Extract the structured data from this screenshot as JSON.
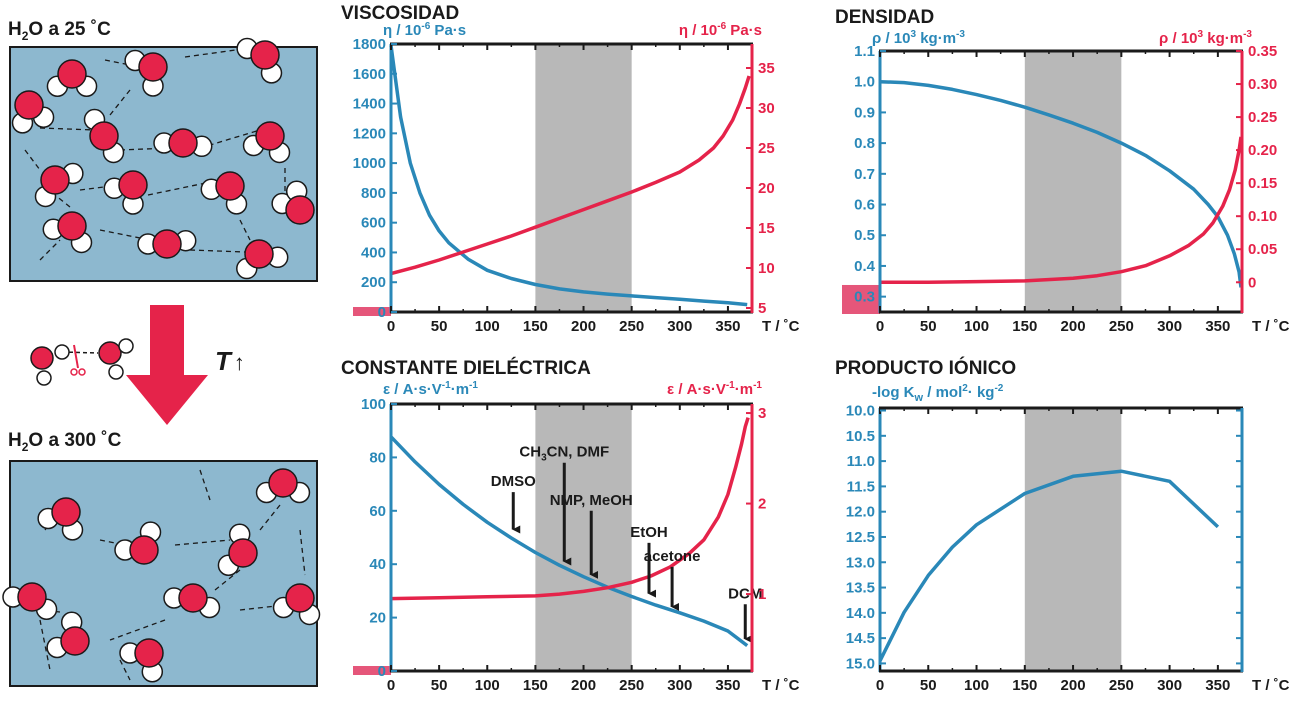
{
  "colors": {
    "blue": "#2a88b8",
    "red": "#e5234a",
    "gray": "#b8b8b8",
    "water": "#8db8cf",
    "black": "#1a1a1a"
  },
  "left": {
    "top_label": {
      "prefix": "H",
      "sub": "2",
      "suffix": "O a 25 ˚C"
    },
    "bottom_label": {
      "prefix": "H",
      "sub": "2",
      "suffix": "O a 300 ˚C"
    },
    "temp_label": {
      "letter": "T",
      "arrow": "↑"
    }
  },
  "chart_data": [
    {
      "id": "viscosity",
      "type": "line",
      "title": "VISCOSIDAD",
      "left_axis_label": {
        "text": "η / 10",
        "sup": "-6",
        "unit": " Pa·s"
      },
      "right_axis_label": {
        "text": "η / 10",
        "sup": "-6",
        "unit": " Pa·s"
      },
      "xlabel": "T / ˚C",
      "xlim": [
        0,
        375
      ],
      "ylim_left": [
        0,
        1800
      ],
      "ylim_right": [
        4.5,
        38
      ],
      "x_ticks": [
        0,
        50,
        100,
        150,
        200,
        250,
        300,
        350
      ],
      "yleft_ticks": [
        0,
        200,
        400,
        600,
        800,
        1000,
        1200,
        1400,
        1600,
        1800
      ],
      "yright_ticks": [
        5,
        10,
        15,
        20,
        25,
        30,
        35
      ],
      "shaded_region": [
        150,
        250
      ],
      "series": [
        {
          "axis": "left",
          "color": "blue",
          "x": [
            0,
            10,
            20,
            30,
            40,
            50,
            60,
            80,
            100,
            125,
            150,
            175,
            200,
            225,
            250,
            275,
            300,
            325,
            350,
            370
          ],
          "values": [
            1790,
            1310,
            1000,
            800,
            650,
            545,
            465,
            355,
            280,
            225,
            185,
            155,
            135,
            120,
            108,
            97,
            85,
            73,
            62,
            50
          ]
        },
        {
          "axis": "right",
          "color": "red",
          "x": [
            0,
            25,
            50,
            75,
            100,
            125,
            150,
            175,
            200,
            225,
            250,
            275,
            300,
            320,
            335,
            345,
            355,
            362,
            368,
            372
          ],
          "values": [
            9.3,
            10.1,
            11.0,
            12.0,
            13.0,
            14.0,
            15.1,
            16.2,
            17.3,
            18.4,
            19.5,
            20.7,
            22.0,
            23.5,
            25.0,
            26.5,
            28.5,
            30.5,
            32.5,
            34.0
          ]
        }
      ]
    },
    {
      "id": "density",
      "type": "line",
      "title": "DENSIDAD",
      "left_axis_label": {
        "text": "ρ / 10",
        "sup": "3",
        "unit": " kg·m",
        "sup2": "-3"
      },
      "right_axis_label": {
        "text": "ρ / 10",
        "sup": "3",
        "unit": " kg·m",
        "sup2": "-3"
      },
      "xlabel": "T / ˚C",
      "xlim": [
        0,
        375
      ],
      "ylim_left": [
        0.25,
        1.1
      ],
      "ylim_right": [
        -0.045,
        0.35
      ],
      "x_ticks": [
        0,
        50,
        100,
        150,
        200,
        250,
        300,
        350
      ],
      "yleft_ticks": [
        0.3,
        0.4,
        0.5,
        0.6,
        0.7,
        0.8,
        0.9,
        1.0,
        1.1
      ],
      "yright_ticks": [
        0,
        0.05,
        0.1,
        0.15,
        0.2,
        0.25,
        0.3,
        0.35
      ],
      "yleft_tick_labels": [
        "0.3",
        "0.4",
        "0.5",
        "0.6",
        "0.7",
        "0.8",
        "0.9",
        "1.0",
        "1.1"
      ],
      "yright_tick_labels": [
        "0",
        "0.05",
        "0.10",
        "0.15",
        "0.20",
        "0.25",
        "0.30",
        "0.35"
      ],
      "shaded_region": [
        150,
        250
      ],
      "series": [
        {
          "axis": "left",
          "color": "blue",
          "x": [
            0,
            25,
            50,
            75,
            100,
            125,
            150,
            175,
            200,
            225,
            250,
            275,
            300,
            325,
            340,
            350,
            360,
            367,
            372,
            374
          ],
          "values": [
            1.0,
            0.997,
            0.988,
            0.975,
            0.958,
            0.939,
            0.917,
            0.892,
            0.865,
            0.835,
            0.8,
            0.76,
            0.71,
            0.65,
            0.6,
            0.56,
            0.5,
            0.44,
            0.38,
            0.33
          ]
        },
        {
          "axis": "right",
          "color": "red",
          "x": [
            0,
            50,
            100,
            150,
            200,
            225,
            250,
            275,
            300,
            320,
            335,
            345,
            355,
            362,
            368,
            372,
            374
          ],
          "values": [
            0,
            0,
            0.001,
            0.002,
            0.006,
            0.01,
            0.016,
            0.025,
            0.04,
            0.056,
            0.073,
            0.09,
            0.115,
            0.14,
            0.17,
            0.2,
            0.22
          ]
        }
      ]
    },
    {
      "id": "dielectric",
      "type": "line",
      "title": "CONSTANTE DIELÉCTRICA",
      "left_axis_label": {
        "text": "ε / A·s·V",
        "sup": "-1",
        "unit": "·m",
        "sup2": "-1"
      },
      "right_axis_label": {
        "text": "ε / A·s·V",
        "sup": "-1",
        "unit": "·m",
        "sup2": "-1"
      },
      "xlabel": "T / ˚C",
      "xlim": [
        0,
        375
      ],
      "ylim_left": [
        0,
        100
      ],
      "ylim_right": [
        0.15,
        3.1
      ],
      "x_ticks": [
        0,
        50,
        100,
        150,
        200,
        250,
        300,
        350
      ],
      "yleft_ticks": [
        0,
        20,
        40,
        60,
        80,
        100
      ],
      "yright_ticks": [
        1,
        2,
        3
      ],
      "shaded_region": [
        150,
        250
      ],
      "series": [
        {
          "axis": "left",
          "color": "blue",
          "x": [
            0,
            25,
            50,
            75,
            100,
            125,
            150,
            175,
            200,
            225,
            250,
            275,
            300,
            325,
            350,
            370
          ],
          "values": [
            87.7,
            78.3,
            69.9,
            62.4,
            55.7,
            49.8,
            44.4,
            39.6,
            35.3,
            31.4,
            27.9,
            24.7,
            21.8,
            18.7,
            15.0,
            9.5
          ]
        },
        {
          "axis": "right",
          "color": "red",
          "x": [
            0,
            50,
            100,
            150,
            175,
            200,
            225,
            250,
            270,
            290,
            310,
            325,
            340,
            350,
            358,
            364,
            368,
            371
          ],
          "values": [
            0.95,
            0.96,
            0.97,
            0.98,
            1.0,
            1.03,
            1.07,
            1.13,
            1.2,
            1.3,
            1.45,
            1.6,
            1.85,
            2.1,
            2.4,
            2.65,
            2.85,
            2.95
          ]
        }
      ],
      "annotations": [
        {
          "label": "DMSO",
          "x": 127,
          "arrow_from": 67,
          "arrow_to": 50
        },
        {
          "label": "CH3CN, DMF",
          "sub": "3",
          "pre": "CH",
          "post": "CN, DMF",
          "x": 180,
          "arrow_from": 78,
          "arrow_to": 38
        },
        {
          "label": "NMP, MeOH",
          "x": 208,
          "arrow_from": 60,
          "arrow_to": 33
        },
        {
          "label": "EtOH",
          "x": 268,
          "arrow_from": 48,
          "arrow_to": 26
        },
        {
          "label": "acetone",
          "x": 292,
          "arrow_from": 39,
          "arrow_to": 21
        },
        {
          "label": "DCM",
          "x": 368,
          "arrow_from": 25,
          "arrow_to": 9
        }
      ]
    },
    {
      "id": "ionic",
      "type": "line",
      "title": "PRODUCTO IÓNICO",
      "left_axis_label": {
        "text": "-log K",
        "sub": "w",
        "unit": " / mol",
        "sup": "2",
        "unit2": "· kg",
        "sup2": "-2"
      },
      "xlabel": "T / ˚C",
      "xlim": [
        0,
        375
      ],
      "ylim_left": [
        15.15,
        9.95
      ],
      "x_ticks": [
        0,
        50,
        100,
        150,
        200,
        250,
        300,
        350
      ],
      "yleft_ticks": [
        10.0,
        10.5,
        11.0,
        11.5,
        12.0,
        12.5,
        13.0,
        13.5,
        14.0,
        14.5,
        15.0
      ],
      "yleft_tick_labels": [
        "10.0",
        "10.5",
        "11.0",
        "11.5",
        "12.0",
        "12.5",
        "13.0",
        "13.5",
        "14.0",
        "14.5",
        "15.0"
      ],
      "shaded_region": [
        150,
        250
      ],
      "series": [
        {
          "axis": "left",
          "color": "blue",
          "x": [
            0,
            25,
            50,
            75,
            100,
            150,
            200,
            250,
            300,
            350
          ],
          "values": [
            14.95,
            13.99,
            13.26,
            12.7,
            12.26,
            11.64,
            11.3,
            11.2,
            11.4,
            12.3
          ]
        }
      ]
    }
  ]
}
